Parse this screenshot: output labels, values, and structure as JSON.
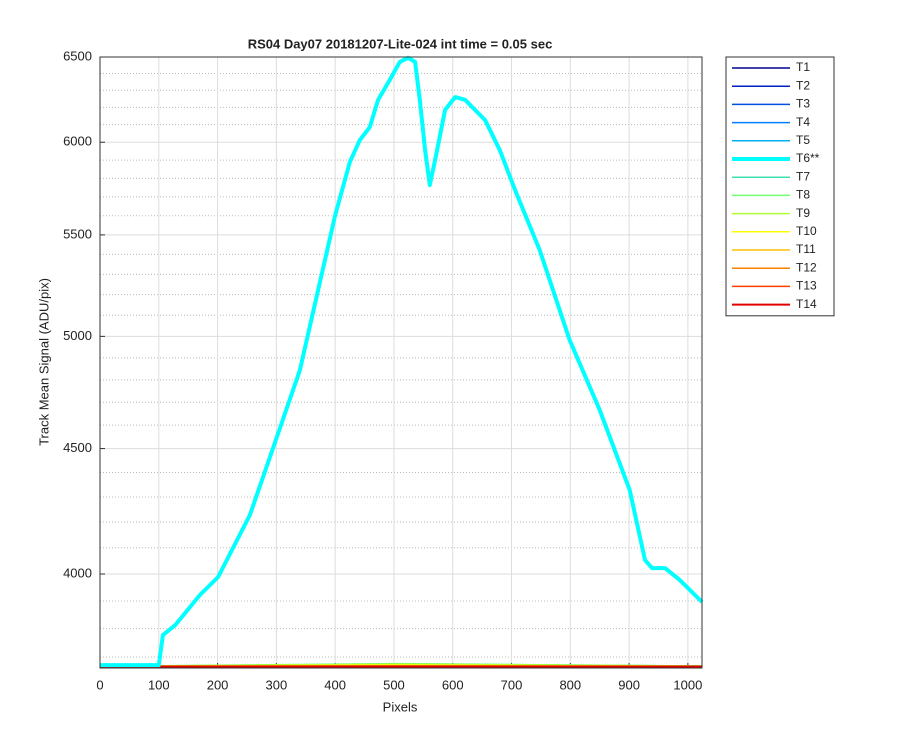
{
  "chart_data": {
    "type": "line",
    "title": "RS04 Day07 20181207-Lite-024 int time = 0.05 sec",
    "xlabel": "Pixels",
    "ylabel": "Track Mean Signal (ADU/pix)",
    "xlim": [
      0,
      1024
    ],
    "xticks": [
      0,
      100,
      200,
      300,
      400,
      500,
      600,
      700,
      800,
      900,
      1000
    ],
    "ylim": [
      3662,
      6500
    ],
    "yticks": [
      4000,
      4500,
      5000,
      5500,
      6000,
      6500
    ],
    "yminorticks": [
      3700,
      3800,
      3900,
      4100,
      4200,
      4300,
      4400,
      4600,
      4700,
      4800,
      4900,
      5100,
      5200,
      5300,
      5400,
      5600,
      5700,
      5800,
      5900,
      6100,
      6200,
      6300,
      6400
    ],
    "log_y": true,
    "grid": true,
    "minor_grid": true,
    "legend_position": "outside-right",
    "series": [
      {
        "name": "T1",
        "color": "#00008f",
        "line_width": 1.5,
        "x": [
          0,
          512,
          1024
        ],
        "values": [
          3668,
          3668,
          3668
        ]
      },
      {
        "name": "T2",
        "color": "#0020c0",
        "line_width": 1.5,
        "x": [
          0,
          512,
          1024
        ],
        "values": [
          3668,
          3669,
          3668
        ]
      },
      {
        "name": "T3",
        "color": "#0050e0",
        "line_width": 1.5,
        "x": [
          0,
          512,
          1024
        ],
        "values": [
          3668,
          3670,
          3668
        ]
      },
      {
        "name": "T4",
        "color": "#0080ff",
        "line_width": 1.5,
        "x": [
          0,
          512,
          1024
        ],
        "values": [
          3668,
          3671,
          3668
        ]
      },
      {
        "name": "T5",
        "color": "#00b0f0",
        "line_width": 1.5,
        "x": [
          0,
          512,
          1024
        ],
        "values": [
          3667,
          3672,
          3668
        ]
      },
      {
        "name": "T6**",
        "color": "#00ffff",
        "line_width": 4,
        "x": [
          0,
          100,
          107,
          128,
          170,
          201,
          255,
          299,
          340,
          400,
          425,
          442,
          459,
          473,
          493,
          510,
          524,
          536,
          544,
          553,
          561,
          570,
          587,
          604,
          621,
          655,
          680,
          706,
          748,
          799,
          850,
          901,
          927,
          939,
          961,
          986,
          1024
        ],
        "values": [
          3672,
          3672,
          3777,
          3813,
          3922,
          3989,
          4228,
          4536,
          4844,
          5603,
          5890,
          6012,
          6086,
          6244,
          6362,
          6470,
          6495,
          6470,
          6244,
          5956,
          5763,
          5900,
          6185,
          6260,
          6244,
          6126,
          5956,
          5736,
          5422,
          4982,
          4666,
          4328,
          4053,
          4022,
          4022,
          3978,
          3896
        ]
      },
      {
        "name": "T7",
        "color": "#40e0b0",
        "line_width": 1.5,
        "x": [
          0,
          512,
          1024
        ],
        "values": [
          3667,
          3676,
          3669
        ]
      },
      {
        "name": "T8",
        "color": "#70ff70",
        "line_width": 1.5,
        "x": [
          0,
          512,
          1024
        ],
        "values": [
          3668,
          3677,
          3669
        ]
      },
      {
        "name": "T9",
        "color": "#b0ff30",
        "line_width": 1.5,
        "x": [
          0,
          512,
          1024
        ],
        "values": [
          3668,
          3675,
          3669
        ]
      },
      {
        "name": "T10",
        "color": "#ffff00",
        "line_width": 1.5,
        "x": [
          0,
          512,
          1024
        ],
        "values": [
          3668,
          3672,
          3668
        ]
      },
      {
        "name": "T11",
        "color": "#ffc000",
        "line_width": 1.5,
        "x": [
          0,
          512,
          1024
        ],
        "values": [
          3668,
          3670,
          3668
        ]
      },
      {
        "name": "T12",
        "color": "#ff8000",
        "line_width": 1.5,
        "x": [
          0,
          512,
          1024
        ],
        "values": [
          3668,
          3669,
          3668
        ]
      },
      {
        "name": "T13",
        "color": "#ff4000",
        "line_width": 1.5,
        "x": [
          0,
          512,
          1024
        ],
        "values": [
          3667,
          3668,
          3667
        ]
      },
      {
        "name": "T14",
        "color": "#e00000",
        "line_width": 2,
        "x": [
          0,
          512,
          1024
        ],
        "values": [
          3667,
          3667,
          3667
        ]
      }
    ]
  }
}
